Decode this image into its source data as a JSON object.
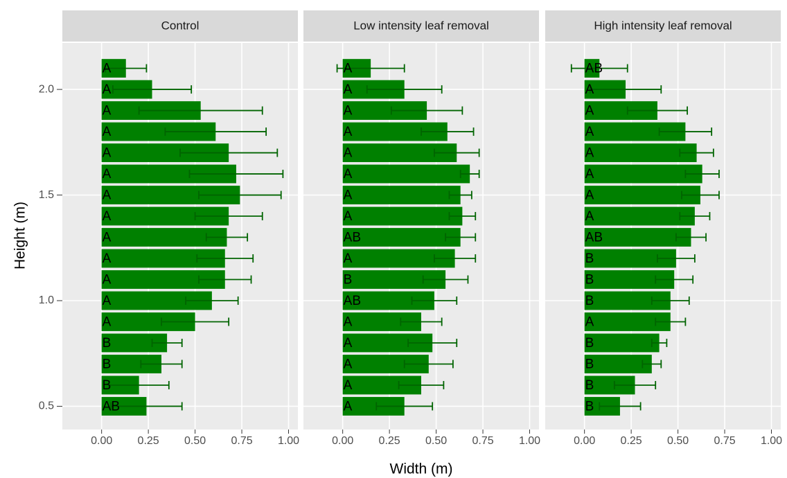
{
  "chart_data": {
    "type": "bar",
    "orientation": "horizontal",
    "x_label": "Width (m)",
    "y_label": "Height (m)",
    "color": "#008000",
    "error_color": "#006400",
    "grid": true,
    "y": [
      0.5,
      0.6,
      0.7,
      0.8,
      0.9,
      1.0,
      1.1,
      1.2,
      1.3,
      1.4,
      1.5,
      1.6,
      1.7,
      1.8,
      1.9,
      2.0,
      2.1
    ],
    "xlim": [
      -0.21,
      1.05
    ],
    "ylim": [
      0.39,
      2.22
    ],
    "xticks": [
      {
        "value": 0,
        "label": "0.00"
      },
      {
        "value": 0.25,
        "label": "0.25"
      },
      {
        "value": 0.5,
        "label": "0.50"
      },
      {
        "value": 0.75,
        "label": "0.75"
      },
      {
        "value": 1,
        "label": "1.00"
      }
    ],
    "yticks": [
      0.5,
      {
        "value": 1,
        "label": "1.0"
      },
      1.5,
      {
        "value": 2,
        "label": "2.0"
      }
    ],
    "facets": [
      {
        "title": "Control",
        "values": [
          0.24,
          0.2,
          0.32,
          0.35,
          0.5,
          0.59,
          0.66,
          0.66,
          0.67,
          0.68,
          0.74,
          0.72,
          0.68,
          0.61,
          0.53,
          0.27,
          0.13
        ],
        "errors": [
          0.19,
          0.16,
          0.11,
          0.08,
          0.18,
          0.14,
          0.14,
          0.15,
          0.11,
          0.18,
          0.22,
          0.25,
          0.26,
          0.27,
          0.33,
          0.21,
          0.11
        ],
        "labels": [
          "AB",
          "B",
          "B",
          "B",
          "A",
          "A",
          "A",
          "A",
          "A",
          "A",
          "A",
          "A",
          "A",
          "A",
          "A",
          "A",
          "A"
        ]
      },
      {
        "title": "Low intensity leaf removal",
        "values": [
          0.33,
          0.42,
          0.46,
          0.48,
          0.42,
          0.49,
          0.55,
          0.6,
          0.63,
          0.64,
          0.63,
          0.68,
          0.61,
          0.56,
          0.45,
          0.33,
          0.15
        ],
        "errors": [
          0.15,
          0.12,
          0.13,
          0.13,
          0.11,
          0.12,
          0.12,
          0.11,
          0.08,
          0.07,
          0.06,
          0.05,
          0.12,
          0.14,
          0.19,
          0.2,
          0.18
        ],
        "labels": [
          "A",
          "A",
          "A",
          "A",
          "A",
          "AB",
          "B",
          "A",
          "AB",
          "A",
          "A",
          "A",
          "A",
          "A",
          "A",
          "A",
          "A"
        ]
      },
      {
        "title": "High intensity leaf removal",
        "values": [
          0.19,
          0.27,
          0.36,
          0.4,
          0.46,
          0.46,
          0.48,
          0.49,
          0.57,
          0.59,
          0.62,
          0.63,
          0.6,
          0.54,
          0.39,
          0.22,
          0.08
        ],
        "errors": [
          0.11,
          0.11,
          0.05,
          0.04,
          0.08,
          0.1,
          0.1,
          0.1,
          0.08,
          0.08,
          0.1,
          0.09,
          0.09,
          0.14,
          0.16,
          0.19,
          0.15
        ],
        "labels": [
          "B",
          "B",
          "B",
          "B",
          "A",
          "B",
          "B",
          "B",
          "AB",
          "A",
          "A",
          "A",
          "A",
          "A",
          "A",
          "A",
          "AB"
        ]
      }
    ]
  }
}
